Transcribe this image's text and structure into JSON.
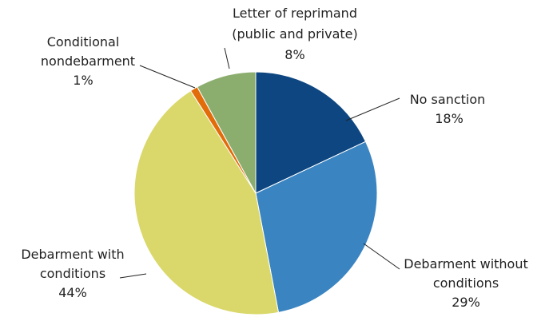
{
  "chart_data": {
    "type": "pie",
    "title": "",
    "slices": [
      {
        "label": "No sanction",
        "value": 18,
        "pct_label": "18%",
        "color": "#0D4680"
      },
      {
        "label": "Debarment without conditions",
        "value": 29,
        "pct_label": "29%",
        "color": "#3A84C1"
      },
      {
        "label": "Debarment with conditions",
        "value": 44,
        "pct_label": "44%",
        "color": "#DAD86A"
      },
      {
        "label": "Conditional nondebarment",
        "value": 1,
        "pct_label": "1%",
        "color": "#E36C0A"
      },
      {
        "label": "Letter of reprimand (public and private)",
        "value": 8,
        "pct_label": "8%",
        "color": "#8BAE6E"
      }
    ]
  },
  "labels": {
    "no_sanction": {
      "line1": "No sanction",
      "pct": "18%"
    },
    "debar_without": {
      "line1": "Debarment without",
      "line2": "conditions",
      "pct": "29%"
    },
    "debar_with": {
      "line1": "Debarment with",
      "line2": "conditions",
      "pct": "44%"
    },
    "cond_nondebar": {
      "line1": "Conditional",
      "line2": "nondebarment",
      "pct": "1%"
    },
    "reprimand": {
      "line1": "Letter of reprimand",
      "line2": "(public and private)",
      "pct": "8%"
    }
  }
}
